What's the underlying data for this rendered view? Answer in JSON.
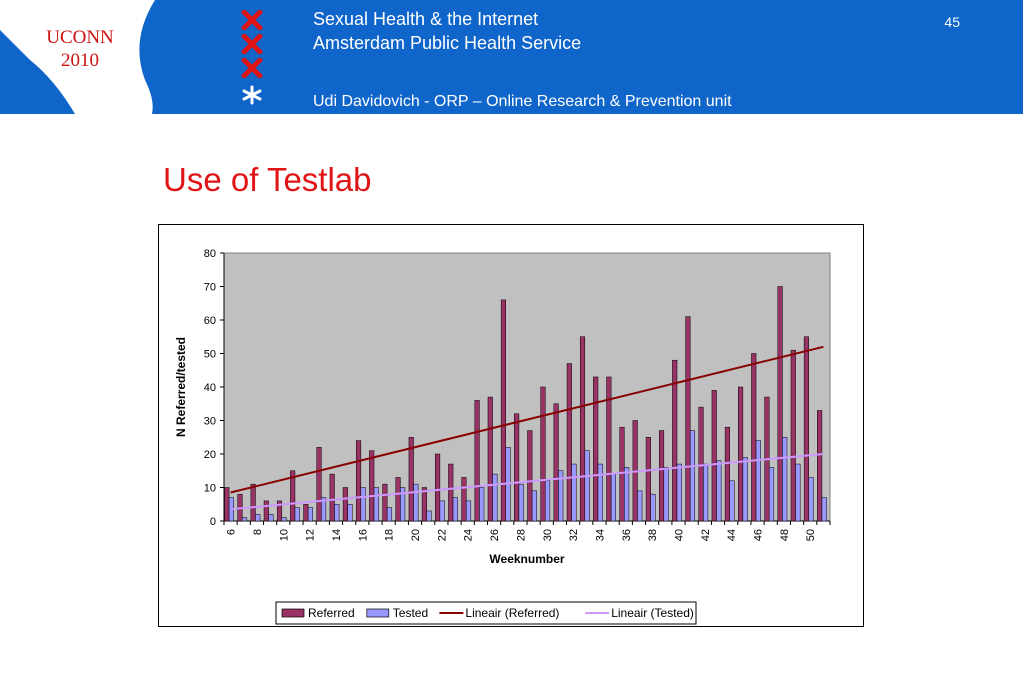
{
  "header": {
    "uconn_line1": "UCONN",
    "uconn_line2": "2010",
    "line1": "Sexual Health & the Internet",
    "line2": "Amsterdam Public Health Service",
    "line3": "Udi Davidovich - ORP – Online Research & Prevention unit",
    "page_number": "45",
    "bg_color": "#0f65c9",
    "icons": [
      "x-cross-icon",
      "x-cross-icon",
      "x-cross-icon",
      "asterisk-logo-icon"
    ]
  },
  "slide": {
    "title": "Use of Testlab",
    "title_color": "#e01414"
  },
  "chart_data": {
    "type": "bar",
    "title": "",
    "xlabel": "Weeknumber",
    "ylabel": "N Referred/tested",
    "ylim": [
      0,
      80
    ],
    "yticks": [
      0,
      10,
      20,
      30,
      40,
      50,
      60,
      70,
      80
    ],
    "grid": false,
    "legend_position": "bottom",
    "plot_background": "#c0c0c0",
    "categories": [
      6,
      7,
      8,
      9,
      10,
      11,
      12,
      13,
      14,
      15,
      16,
      17,
      18,
      19,
      20,
      21,
      22,
      23,
      24,
      25,
      26,
      27,
      28,
      29,
      30,
      31,
      32,
      33,
      34,
      35,
      36,
      37,
      38,
      39,
      40,
      41,
      42,
      43,
      44,
      45,
      46,
      47,
      48,
      49,
      50,
      51
    ],
    "xtick_labels": [
      "6",
      "8",
      "10",
      "12",
      "14",
      "16",
      "18",
      "20",
      "22",
      "24",
      "26",
      "28",
      "30",
      "32",
      "34",
      "36",
      "38",
      "40",
      "42",
      "44",
      "46",
      "48",
      "50"
    ],
    "series": [
      {
        "name": "Referred",
        "color": "#993366",
        "values": [
          10,
          8,
          11,
          6,
          6,
          15,
          5,
          22,
          14,
          10,
          24,
          21,
          11,
          13,
          25,
          10,
          20,
          17,
          13,
          36,
          37,
          66,
          32,
          27,
          40,
          35,
          47,
          55,
          43,
          43,
          28,
          30,
          25,
          27,
          48,
          61,
          34,
          39,
          28,
          40,
          50,
          37,
          70,
          51,
          55,
          33
        ]
      },
      {
        "name": "Tested",
        "color": "#9999ff",
        "values": [
          7,
          1,
          2,
          2,
          1,
          4,
          4,
          7,
          5,
          5,
          10,
          10,
          4,
          10,
          11,
          3,
          6,
          7,
          6,
          10,
          14,
          22,
          11,
          9,
          12,
          15,
          17,
          21,
          17,
          14,
          16,
          9,
          8,
          16,
          17,
          27,
          17,
          18,
          12,
          19,
          24,
          16,
          25,
          17,
          13,
          7
        ]
      }
    ],
    "trendlines": [
      {
        "name": "Lineair (Referred)",
        "color": "#880000",
        "start": 8.5,
        "end": 52
      },
      {
        "name": "Lineair (Tested)",
        "color": "#cc99ff",
        "start": 3.5,
        "end": 20
      }
    ]
  }
}
